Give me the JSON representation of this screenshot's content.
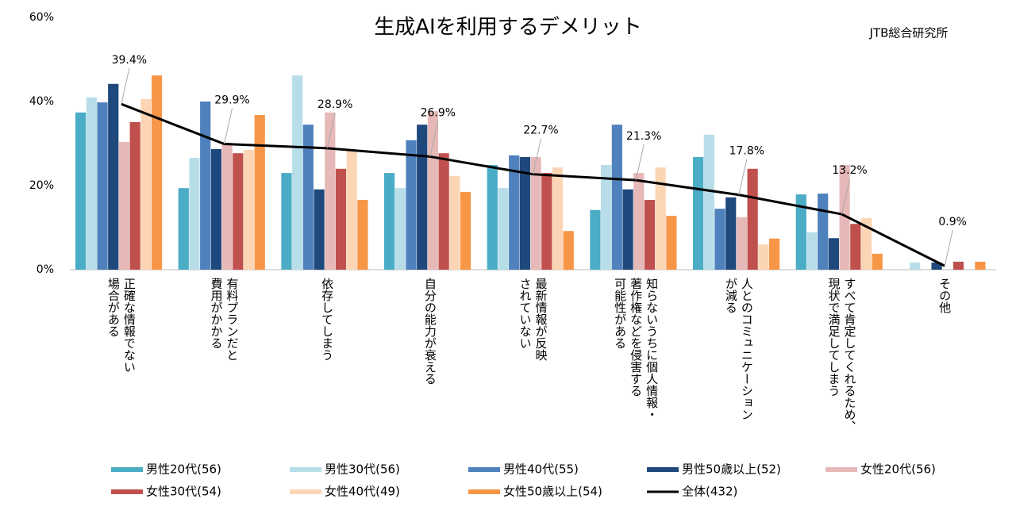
{
  "chart_data": {
    "type": "bar",
    "title": "生成AIを利用するデメリット",
    "source": "JTB総合研究所",
    "categories": [
      "正確な情報でない\n場合がある",
      "有料プランだと\n費用がかかる",
      "依存してしまう",
      "自分の能力が衰える",
      "最新情報が反映\nされていない",
      "知らないうちに個人情報・\n著作権などを侵害する\n可能性がある",
      "人とのコミュニケーション\nが減る",
      "すべて肯定してくれるため、\n現状で満足してしまう",
      "その他"
    ],
    "ylim": [
      0,
      60
    ],
    "yticks": [
      {
        "value": 0,
        "label": "0%"
      },
      {
        "value": 20,
        "label": "20%"
      },
      {
        "value": 40,
        "label": "40%"
      },
      {
        "value": 60,
        "label": "60%"
      }
    ],
    "grid": false,
    "series": [
      {
        "name": "男性20代(56)",
        "color": "#4bacc6",
        "values": [
          37.4,
          19.4,
          23.0,
          23.0,
          24.9,
          14.2,
          26.8,
          17.9,
          0
        ]
      },
      {
        "name": "男性30代(56)",
        "color": "#b7dee8",
        "values": [
          41.0,
          26.6,
          46.2,
          19.4,
          19.4,
          24.9,
          32.1,
          8.9,
          1.7
        ]
      },
      {
        "name": "男性40代(55)",
        "color": "#4f81bd",
        "values": [
          39.8,
          40.0,
          34.5,
          30.8,
          27.2,
          34.5,
          14.5,
          18.1,
          0
        ]
      },
      {
        "name": "男性50歳以上(52)",
        "color": "#1f497d",
        "values": [
          44.2,
          28.7,
          19.1,
          34.5,
          26.8,
          19.1,
          17.2,
          7.5,
          1.7
        ]
      },
      {
        "name": "女性20代(56)",
        "color": "#e6b9b8",
        "values": [
          30.4,
          30.2,
          37.4,
          37.7,
          26.8,
          23.0,
          12.5,
          24.9,
          0
        ]
      },
      {
        "name": "女性30代(54)",
        "color": "#c0504d",
        "values": [
          35.1,
          27.7,
          24.0,
          27.7,
          23.0,
          16.6,
          24.0,
          10.9,
          1.9
        ]
      },
      {
        "name": "女性40代(49)",
        "color": "#fcd5b5",
        "values": [
          40.6,
          28.5,
          28.3,
          22.3,
          24.3,
          24.3,
          6.0,
          12.3,
          0
        ]
      },
      {
        "name": "女性50歳以上(54)",
        "color": "#f79646",
        "values": [
          46.2,
          36.8,
          16.6,
          18.5,
          9.2,
          12.8,
          7.4,
          3.8,
          1.9
        ]
      },
      {
        "name": "全体(432)",
        "color": "#000000",
        "type": "line",
        "values": [
          39.4,
          29.9,
          28.9,
          26.9,
          22.7,
          21.3,
          17.8,
          13.2,
          0.9
        ],
        "value_labels": [
          "39.4%",
          "29.9%",
          "28.9%",
          "26.9%",
          "22.7%",
          "21.3%",
          "17.8%",
          "13.2%",
          "0.9%"
        ]
      }
    ]
  }
}
